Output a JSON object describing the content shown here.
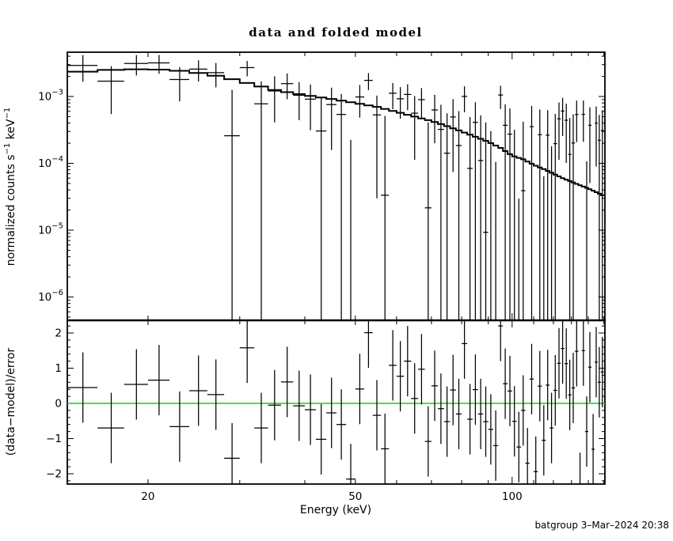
{
  "title": "data and folded model",
  "footer": "batgroup  3–Mar–2024 20:38",
  "colors": {
    "foreground": "#000000",
    "background": "#ffffff",
    "zero_line": "#00dd00"
  },
  "chart_data": {
    "type": "line+errorbar",
    "description": "X-ray spectrum: data with errors and folded model (top, log-log), delchi residuals (bottom)",
    "x_axis": {
      "label": "Energy (keV)",
      "scale": "log",
      "range_keV": [
        14.0,
        150.7
      ],
      "labeled_ticks": [
        20,
        50,
        100
      ],
      "minor_ticks": [
        30,
        40,
        60,
        70,
        80,
        90,
        110,
        120,
        130,
        140,
        150
      ]
    },
    "top_panel": {
      "ylabel": "normalized counts s^-1 keV^-1",
      "ylabel_parts": [
        {
          "t": "normalized counts s"
        },
        {
          "t": "−1",
          "sup": true
        },
        {
          "t": " keV"
        },
        {
          "t": "−1",
          "sup": true
        }
      ],
      "scale": "log",
      "range": [
        4.5e-07,
        0.0046
      ],
      "tick_exponents": [
        -3,
        -4,
        -5,
        -6
      ]
    },
    "bottom_panel": {
      "ylabel": "(data−model)/error",
      "scale": "linear",
      "range": [
        -2.29,
        2.36
      ],
      "labeled_ticks": [
        2,
        1,
        0,
        -1,
        -2
      ],
      "minor_tick_step": 0.2,
      "residual_error": 1.0
    },
    "model_anchors": {
      "e": [
        14,
        16,
        18,
        20,
        22,
        24,
        26,
        28,
        30,
        32,
        35,
        40,
        45,
        50,
        55,
        60,
        65,
        70,
        75,
        80,
        85,
        90,
        95,
        100,
        105,
        110,
        115,
        120,
        125,
        130,
        135,
        140,
        145,
        150.7
      ],
      "v": [
        0.00225,
        0.00245,
        0.00255,
        0.00255,
        0.0025,
        0.00235,
        0.00215,
        0.00195,
        0.0017,
        0.0015,
        0.00125,
        0.00105,
        0.00092,
        0.0008,
        0.0007,
        0.00059,
        0.0005,
        0.00043,
        0.00036,
        0.0003,
        0.00025,
        0.00021,
        0.00017,
        0.00013,
        0.000115,
        9.5e-05,
        8.2e-05,
        7e-05,
        6e-05,
        5.3e-05,
        4.7e-05,
        4.2e-05,
        3.7e-05,
        3.2e-05
      ]
    },
    "bins": {
      "half_width_keV": 1,
      "centers": [
        15,
        17,
        19,
        21,
        23,
        25,
        27,
        29,
        31,
        33,
        35,
        37,
        39,
        41,
        43,
        45,
        47,
        49,
        51,
        53,
        55,
        57,
        59,
        61,
        63,
        65,
        67,
        69,
        71,
        73,
        75,
        77,
        79,
        81,
        83,
        85,
        87,
        89,
        91,
        93,
        95,
        97,
        99,
        101,
        103,
        105,
        107,
        109,
        111,
        113,
        115,
        117,
        119,
        121,
        123,
        125,
        127,
        129,
        131,
        133,
        135,
        137,
        139,
        141,
        143,
        145,
        147,
        149
      ]
    },
    "points": [
      {
        "e": 15,
        "resid": 0.45,
        "err": 0.00125
      },
      {
        "e": 17,
        "resid": -0.7,
        "err": 0.00115
      },
      {
        "e": 19,
        "resid": 0.54,
        "err": 0.00105
      },
      {
        "e": 21,
        "resid": 0.66,
        "err": 0.001
      },
      {
        "e": 23,
        "resid": -0.66,
        "err": 0.00095
      },
      {
        "e": 25,
        "resid": 0.36,
        "err": 0.0009
      },
      {
        "e": 27,
        "resid": 0.25,
        "err": 0.0009
      },
      {
        "e": 29,
        "resid": -1.56,
        "err": 0.001
      },
      {
        "e": 31,
        "resid": 1.58,
        "err": 0.0007
      },
      {
        "e": 33,
        "resid": -0.7,
        "err": 0.0009
      },
      {
        "e": 35,
        "resid": -0.05,
        "err": 0.0008
      },
      {
        "e": 37,
        "resid": 0.61,
        "err": 0.00065
      },
      {
        "e": 39,
        "resid": -0.07,
        "err": 0.0006
      },
      {
        "e": 41,
        "resid": -0.18,
        "err": 0.0006
      },
      {
        "e": 43,
        "resid": -1.02,
        "err": 0.00065
      },
      {
        "e": 45,
        "resid": -0.27,
        "err": 0.0006
      },
      {
        "e": 47,
        "resid": -0.6,
        "err": 0.00055
      },
      {
        "e": 49,
        "resid": -2.15,
        "err": 0.00052
      },
      {
        "e": 51,
        "resid": 0.41,
        "err": 0.0005
      },
      {
        "e": 53,
        "resid": 2.01,
        "err": 0.0005
      },
      {
        "e": 55,
        "resid": -0.34,
        "err": 0.0005
      },
      {
        "e": 57,
        "resid": -1.29,
        "err": 0.00048
      },
      {
        "e": 59,
        "resid": 1.08,
        "err": 0.00047
      },
      {
        "e": 61,
        "resid": 0.77,
        "err": 0.00046
      },
      {
        "e": 63,
        "resid": 1.2,
        "err": 0.00045
      },
      {
        "e": 65,
        "resid": 0.14,
        "err": 0.00045
      },
      {
        "e": 67,
        "resid": 0.97,
        "err": 0.00044
      },
      {
        "e": 69,
        "resid": -1.08,
        "err": 0.00039
      },
      {
        "e": 71,
        "resid": 0.5,
        "err": 0.00043
      },
      {
        "e": 73,
        "resid": -0.15,
        "err": 0.00043
      },
      {
        "e": 75,
        "resid": -0.52,
        "err": 0.00042
      },
      {
        "e": 77,
        "resid": 0.38,
        "err": 0.00042
      },
      {
        "e": 79,
        "resid": -0.3,
        "err": 0.00042
      },
      {
        "e": 81,
        "resid": 1.7,
        "err": 0.00042
      },
      {
        "e": 83,
        "resid": -0.45,
        "err": 0.00041
      },
      {
        "e": 85,
        "resid": 0.39,
        "err": 0.00041
      },
      {
        "e": 87,
        "resid": -0.3,
        "err": 0.00041
      },
      {
        "e": 89,
        "resid": -0.52,
        "err": 0.0004
      },
      {
        "e": 91,
        "resid": -0.74,
        "err": 0.0004
      },
      {
        "e": 93,
        "resid": -1.2,
        "err": 0.0004
      },
      {
        "e": 95,
        "resid": 2.2,
        "err": 0.0004
      },
      {
        "e": 97,
        "resid": 0.56,
        "err": 0.00039
      },
      {
        "e": 99,
        "resid": 0.35,
        "err": 0.00039
      },
      {
        "e": 101,
        "resid": -0.51,
        "err": 0.00039
      },
      {
        "e": 103,
        "resid": -1.24,
        "err": 0.00038
      },
      {
        "e": 105,
        "resid": -0.2,
        "err": 0.00038
      },
      {
        "e": 107,
        "resid": -1.7,
        "err": 0.00038
      },
      {
        "e": 109,
        "resid": 0.69,
        "err": 0.00037
      },
      {
        "e": 111,
        "resid": -1.94,
        "err": 0.00037
      },
      {
        "e": 113,
        "resid": 0.49,
        "err": 0.00037
      },
      {
        "e": 115,
        "resid": -1.05,
        "err": 0.00036
      },
      {
        "e": 117,
        "resid": 0.52,
        "err": 0.00036
      },
      {
        "e": 119,
        "resid": -0.7,
        "err": 0.00036
      },
      {
        "e": 121,
        "resid": 0.37,
        "err": 0.00035
      },
      {
        "e": 123,
        "resid": 1.14,
        "err": 0.00035
      },
      {
        "e": 125,
        "resid": 1.56,
        "err": 0.00035
      },
      {
        "e": 127,
        "resid": 1.13,
        "err": 0.00034
      },
      {
        "e": 129,
        "resid": 0.24,
        "err": 0.00034
      },
      {
        "e": 131,
        "resid": 0.44,
        "err": 0.00034
      },
      {
        "e": 133,
        "resid": 1.48,
        "err": 0.00033
      },
      {
        "e": 135,
        "resid": -2.4,
        "err": 0.00033
      },
      {
        "e": 137,
        "resid": 1.5,
        "err": 0.00033
      },
      {
        "e": 139,
        "resid": -0.8,
        "err": 0.00032
      },
      {
        "e": 141,
        "resid": 1.03,
        "err": 0.00032
      },
      {
        "e": 143,
        "resid": -1.3,
        "err": 0.00032
      },
      {
        "e": 145,
        "resid": 1.17,
        "err": 0.00031
      },
      {
        "e": 147,
        "resid": 0.6,
        "err": 0.00031
      },
      {
        "e": 149,
        "resid": 0.89,
        "err": 0.00031
      }
    ]
  }
}
